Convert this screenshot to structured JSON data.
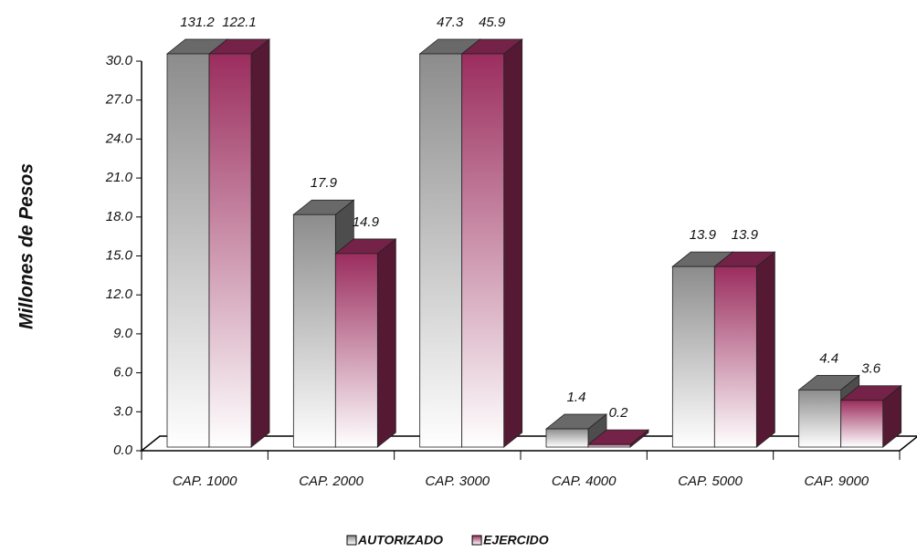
{
  "chart_data": {
    "type": "bar3d",
    "y_label": "Millones de Pesos",
    "categories": [
      "CAP. 1000",
      "CAP. 2000",
      "CAP. 3000",
      "CAP. 4000",
      "CAP. 5000",
      "CAP. 9000"
    ],
    "series": [
      {
        "name": "AUTORIZADO",
        "color": "#8c8c8c",
        "values": [
          131.2,
          17.9,
          47.3,
          1.4,
          13.9,
          4.4
        ]
      },
      {
        "name": "EJERCIDO",
        "color": "#9b2d5e",
        "values": [
          122.1,
          14.9,
          45.9,
          0.2,
          13.9,
          3.6
        ]
      }
    ],
    "ylim": [
      0,
      30
    ],
    "yticks": [
      {
        "value": 0,
        "label": "0.0"
      },
      {
        "value": 3,
        "label": "3.0"
      },
      {
        "value": 6,
        "label": "6.0"
      },
      {
        "value": 9,
        "label": "9.0"
      },
      {
        "value": 12,
        "label": "12.0"
      },
      {
        "value": 15,
        "label": "15.0"
      },
      {
        "value": 18,
        "label": "18.0"
      },
      {
        "value": 21,
        "label": "21.0"
      },
      {
        "value": 24,
        "label": "24.0"
      },
      {
        "value": 27,
        "label": "27.0"
      },
      {
        "value": 30,
        "label": "30.0"
      }
    ],
    "legend": "bottom"
  }
}
